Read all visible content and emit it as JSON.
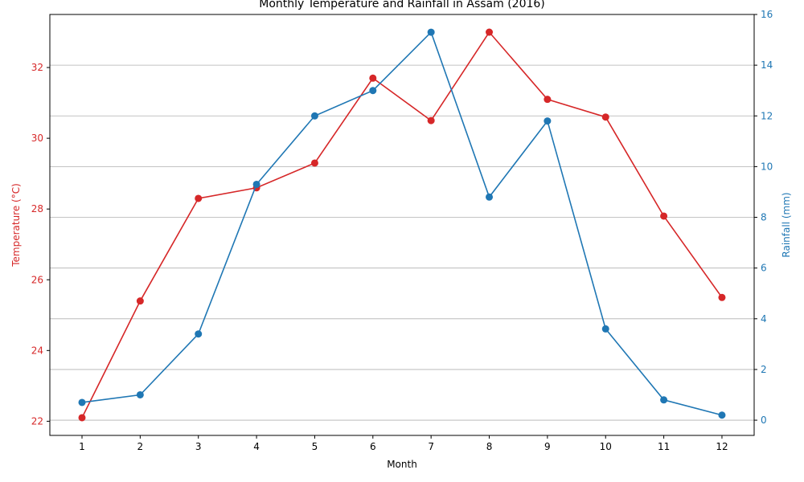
{
  "chart_data": {
    "type": "line",
    "title": "Monthly Temperature and Rainfall in Assam (2016)",
    "xlabel": "Month",
    "categories": [
      1,
      2,
      3,
      4,
      5,
      6,
      7,
      8,
      9,
      10,
      11,
      12
    ],
    "x_ticks": [
      "1",
      "2",
      "3",
      "4",
      "5",
      "6",
      "7",
      "8",
      "9",
      "10",
      "11",
      "12"
    ],
    "left_axis": {
      "label": "Temperature (°C)",
      "ylim": [
        21.6,
        33.5
      ],
      "ticks": [
        22,
        24,
        26,
        28,
        30,
        32
      ],
      "color": "#d62728"
    },
    "right_axis": {
      "label": "Rainfall (mm)",
      "ylim": [
        -0.6,
        16.0
      ],
      "ticks": [
        0,
        2,
        4,
        6,
        8,
        10,
        12,
        14,
        16
      ],
      "color": "#1f77b4"
    },
    "grid": "horizontal-right-axis",
    "series": [
      {
        "axis": "left",
        "color": "#d62728",
        "values": [
          22.1,
          25.4,
          28.3,
          28.6,
          29.3,
          31.7,
          30.5,
          33.0,
          31.1,
          30.6,
          27.8,
          25.5
        ]
      },
      {
        "axis": "right",
        "color": "#1f77b4",
        "values": [
          0.7,
          1.0,
          3.4,
          9.3,
          12.0,
          13.0,
          15.3,
          8.8,
          11.8,
          3.6,
          0.8,
          0.2
        ]
      }
    ]
  }
}
